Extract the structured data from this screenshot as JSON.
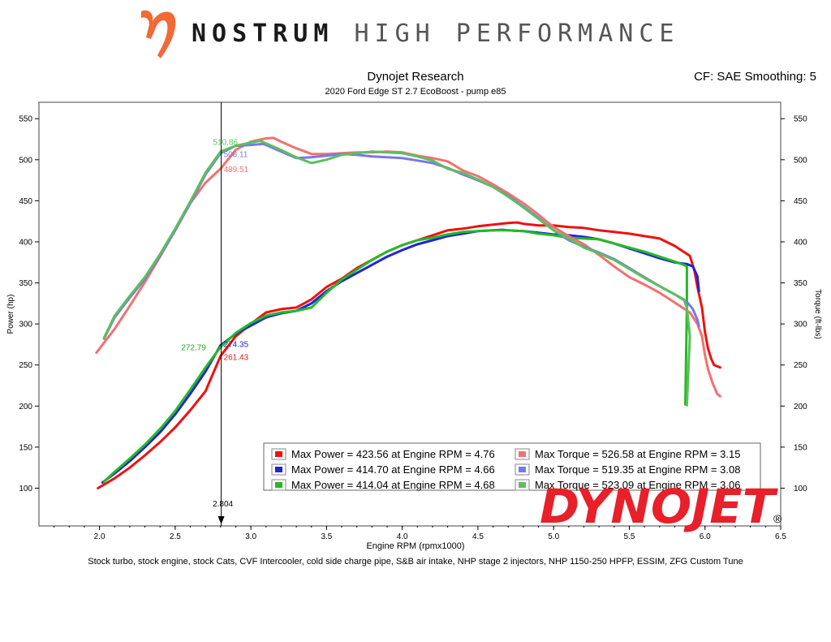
{
  "header": {
    "brand_name": "NOSTRUM",
    "brand_tagline": "HIGH PERFORMANCE",
    "logo_icon": "nostrum-n-logo-icon",
    "logo_color": "#f06a35"
  },
  "watermark": {
    "text": "DYNOJET",
    "registered": "®",
    "color": "#e8202a"
  },
  "chart_data": {
    "type": "line",
    "title": "Dynojet Research",
    "subtitle": "2020 Ford Edge ST 2.7 EcoBoost - pump e85",
    "corner_text": "CF: SAE Smoothing: 5",
    "xlabel": "Engine RPM (rpmx1000)",
    "ylabel_left": "Power (hp)",
    "ylabel_right": "Torque (ft-lbs)",
    "xlim": [
      1.6,
      6.5
    ],
    "ylim": [
      54,
      570
    ],
    "x_ticks": [
      "2.0",
      "2.5",
      "3.0",
      "3.5",
      "4.0",
      "4.5",
      "5.0",
      "5.5",
      "6.0",
      "6.5"
    ],
    "y_ticks": [
      "100",
      "150",
      "200",
      "250",
      "300",
      "350",
      "400",
      "450",
      "500",
      "550"
    ],
    "cursor": {
      "x": 2.804,
      "label": "2.804"
    },
    "cursor_labels": [
      {
        "text": "510.86",
        "color": "#5cbf5c",
        "x": 2.75,
        "y": 522
      },
      {
        "text": "508.11",
        "color": "#7777ee",
        "x": 2.82,
        "y": 507
      },
      {
        "text": "489.51",
        "color": "#f07070",
        "x": 2.82,
        "y": 489
      },
      {
        "text": "272.79",
        "color": "#22aa22",
        "x": 2.54,
        "y": 272
      },
      {
        "text": "274.35",
        "color": "#2222cc",
        "x": 2.82,
        "y": 276
      },
      {
        "text": "261.43",
        "color": "#dd2222",
        "x": 2.82,
        "y": 260
      }
    ],
    "legend": [
      "Max Power = 423.56 at Engine RPM = 4.76",
      "Max Torque = 526.58 at Engine RPM = 3.15",
      "Max Power = 414.70 at Engine RPM = 4.66",
      "Max Torque = 519.35 at Engine RPM = 3.08",
      "Max Power = 414.04 at Engine RPM = 4.68",
      "Max Torque = 523.09 at Engine RPM = 3.06"
    ],
    "series": [
      {
        "color": "#ee1111",
        "kind": "power",
        "x": [
          1.99,
          2.1,
          2.2,
          2.3,
          2.4,
          2.5,
          2.6,
          2.7,
          2.8,
          2.9,
          3.0,
          3.1,
          3.2,
          3.3,
          3.4,
          3.5,
          3.6,
          3.7,
          3.8,
          3.9,
          4.0,
          4.1,
          4.2,
          4.3,
          4.4,
          4.5,
          4.6,
          4.7,
          4.76,
          4.8,
          4.9,
          5.0,
          5.1,
          5.2,
          5.3,
          5.4,
          5.5,
          5.6,
          5.7,
          5.8,
          5.9,
          5.93,
          5.95,
          5.98,
          6.0,
          6.02,
          6.04,
          6.06,
          6.1
        ],
        "y": [
          100,
          112,
          125,
          140,
          156,
          174,
          195,
          218,
          261,
          285,
          300,
          314,
          318,
          320,
          330,
          345,
          355,
          368,
          378,
          388,
          396,
          402,
          408,
          414,
          416,
          419,
          421,
          423,
          423.56,
          422,
          420,
          420,
          418,
          417,
          414,
          412,
          410,
          407,
          404,
          395,
          383,
          365,
          345,
          320,
          290,
          270,
          258,
          250,
          247
        ]
      },
      {
        "color": "#2222dd",
        "kind": "power",
        "x": [
          2.02,
          2.1,
          2.2,
          2.3,
          2.4,
          2.5,
          2.6,
          2.7,
          2.8,
          2.9,
          3.0,
          3.1,
          3.2,
          3.3,
          3.4,
          3.5,
          3.6,
          3.7,
          3.8,
          3.9,
          4.0,
          4.1,
          4.2,
          4.3,
          4.4,
          4.5,
          4.6,
          4.66,
          4.7,
          4.8,
          4.9,
          5.0,
          5.1,
          5.2,
          5.3,
          5.4,
          5.5,
          5.6,
          5.7,
          5.8,
          5.88,
          5.92,
          5.95,
          5.96
        ],
        "y": [
          107,
          118,
          133,
          150,
          168,
          190,
          215,
          242,
          274,
          288,
          298,
          308,
          313,
          316,
          325,
          340,
          352,
          362,
          372,
          382,
          390,
          397,
          402,
          407,
          410,
          413,
          414,
          414.7,
          414,
          413,
          411,
          409,
          408,
          406,
          403,
          398,
          392,
          386,
          380,
          375,
          373,
          370,
          358,
          340
        ]
      },
      {
        "color": "#22bb22",
        "kind": "power",
        "x": [
          2.03,
          2.1,
          2.2,
          2.3,
          2.4,
          2.5,
          2.6,
          2.7,
          2.8,
          2.9,
          3.0,
          3.1,
          3.2,
          3.3,
          3.4,
          3.5,
          3.6,
          3.7,
          3.8,
          3.9,
          4.0,
          4.1,
          4.2,
          4.3,
          4.4,
          4.5,
          4.6,
          4.68,
          4.7,
          4.8,
          4.9,
          5.0,
          5.1,
          5.2,
          5.3,
          5.4,
          5.5,
          5.6,
          5.7,
          5.8,
          5.86,
          5.88,
          5.88,
          5.87
        ],
        "y": [
          108,
          120,
          136,
          153,
          172,
          194,
          220,
          247,
          272,
          289,
          301,
          310,
          314,
          316,
          320,
          338,
          354,
          366,
          378,
          388,
          396,
          402,
          405,
          409,
          412,
          413,
          414,
          414.04,
          414,
          413,
          410,
          408,
          405,
          404,
          403,
          398,
          393,
          388,
          382,
          376,
          372,
          370,
          320,
          202
        ]
      },
      {
        "color": "#f47070",
        "kind": "torque",
        "x": [
          1.98,
          2.1,
          2.2,
          2.3,
          2.4,
          2.5,
          2.6,
          2.7,
          2.8,
          2.9,
          3.0,
          3.1,
          3.15,
          3.2,
          3.3,
          3.4,
          3.5,
          3.6,
          3.7,
          3.8,
          3.9,
          4.0,
          4.1,
          4.2,
          4.3,
          4.4,
          4.5,
          4.6,
          4.7,
          4.8,
          4.9,
          5.0,
          5.1,
          5.2,
          5.3,
          5.4,
          5.5,
          5.6,
          5.7,
          5.8,
          5.9,
          5.95,
          5.98,
          6.0,
          6.02,
          6.05,
          6.08,
          6.1
        ],
        "y": [
          265,
          294,
          322,
          351,
          382,
          414,
          447,
          472,
          489,
          512,
          522,
          526,
          526.58,
          522,
          514,
          507,
          507,
          508,
          509,
          509,
          510,
          509,
          505,
          502,
          498,
          487,
          480,
          470,
          459,
          447,
          433,
          418,
          407,
          397,
          384,
          370,
          357,
          348,
          338,
          326,
          314,
          300,
          285,
          262,
          245,
          228,
          215,
          212
        ]
      },
      {
        "color": "#7777ee",
        "kind": "torque",
        "x": [
          2.03,
          2.1,
          2.2,
          2.3,
          2.4,
          2.5,
          2.6,
          2.7,
          2.8,
          2.9,
          3.0,
          3.08,
          3.1,
          3.2,
          3.3,
          3.4,
          3.5,
          3.6,
          3.7,
          3.8,
          3.9,
          4.0,
          4.1,
          4.2,
          4.3,
          4.4,
          4.5,
          4.6,
          4.7,
          4.8,
          4.9,
          5.0,
          5.1,
          5.2,
          5.3,
          5.4,
          5.5,
          5.6,
          5.7,
          5.8,
          5.88,
          5.92,
          5.95,
          5.96
        ],
        "y": [
          282,
          308,
          332,
          355,
          383,
          414,
          447,
          482,
          508,
          517,
          518,
          519.35,
          518,
          510,
          502,
          503,
          505,
          507,
          506,
          504,
          503,
          502,
          499,
          496,
          490,
          482,
          475,
          467,
          456,
          443,
          429,
          414,
          402,
          394,
          387,
          379,
          368,
          357,
          346,
          336,
          327,
          318,
          305,
          297
        ]
      },
      {
        "color": "#5cbf5c",
        "kind": "torque",
        "x": [
          2.03,
          2.1,
          2.2,
          2.3,
          2.4,
          2.5,
          2.6,
          2.7,
          2.8,
          2.9,
          3.0,
          3.06,
          3.1,
          3.2,
          3.3,
          3.4,
          3.5,
          3.6,
          3.7,
          3.8,
          3.9,
          4.0,
          4.1,
          4.2,
          4.3,
          4.4,
          4.5,
          4.6,
          4.7,
          4.8,
          4.9,
          5.0,
          5.1,
          5.2,
          5.3,
          5.4,
          5.5,
          5.6,
          5.7,
          5.8,
          5.86,
          5.88,
          5.9,
          5.88
        ],
        "y": [
          283,
          310,
          334,
          357,
          385,
          416,
          449,
          484,
          510,
          517,
          521,
          523.09,
          520,
          512,
          503,
          496,
          500,
          506,
          508,
          510,
          509,
          508,
          504,
          499,
          489,
          484,
          476,
          467,
          455,
          442,
          428,
          414,
          404,
          393,
          386,
          378,
          367,
          356,
          346,
          336,
          330,
          320,
          285,
          201
        ]
      }
    ]
  }
}
